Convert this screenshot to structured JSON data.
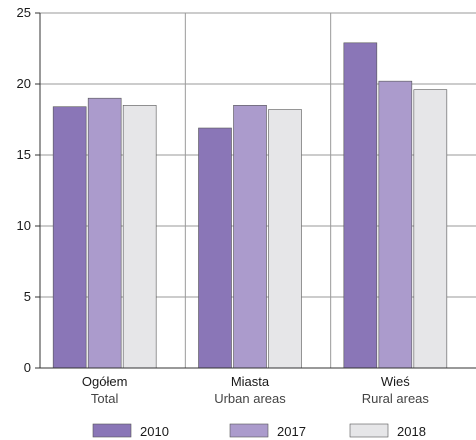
{
  "chart_data": {
    "type": "bar",
    "categories": [
      {
        "label": "Ogółem",
        "sublabel": "Total"
      },
      {
        "label": "Miasta",
        "sublabel": "Urban areas"
      },
      {
        "label": "Wieś",
        "sublabel": "Rural areas"
      }
    ],
    "series": [
      {
        "name": "2010",
        "color": "#8a76b7",
        "values": [
          18.4,
          16.9,
          22.9
        ]
      },
      {
        "name": "2017",
        "color": "#ab9bcc",
        "values": [
          19.0,
          18.5,
          20.2
        ]
      },
      {
        "name": "2018",
        "color": "#e6e6e8",
        "values": [
          18.5,
          18.2,
          19.6
        ]
      }
    ],
    "yticks": [
      "0",
      "5",
      "10",
      "15",
      "20",
      "25"
    ],
    "ylim": [
      0,
      25
    ],
    "grid": true,
    "legend_position": "bottom"
  }
}
